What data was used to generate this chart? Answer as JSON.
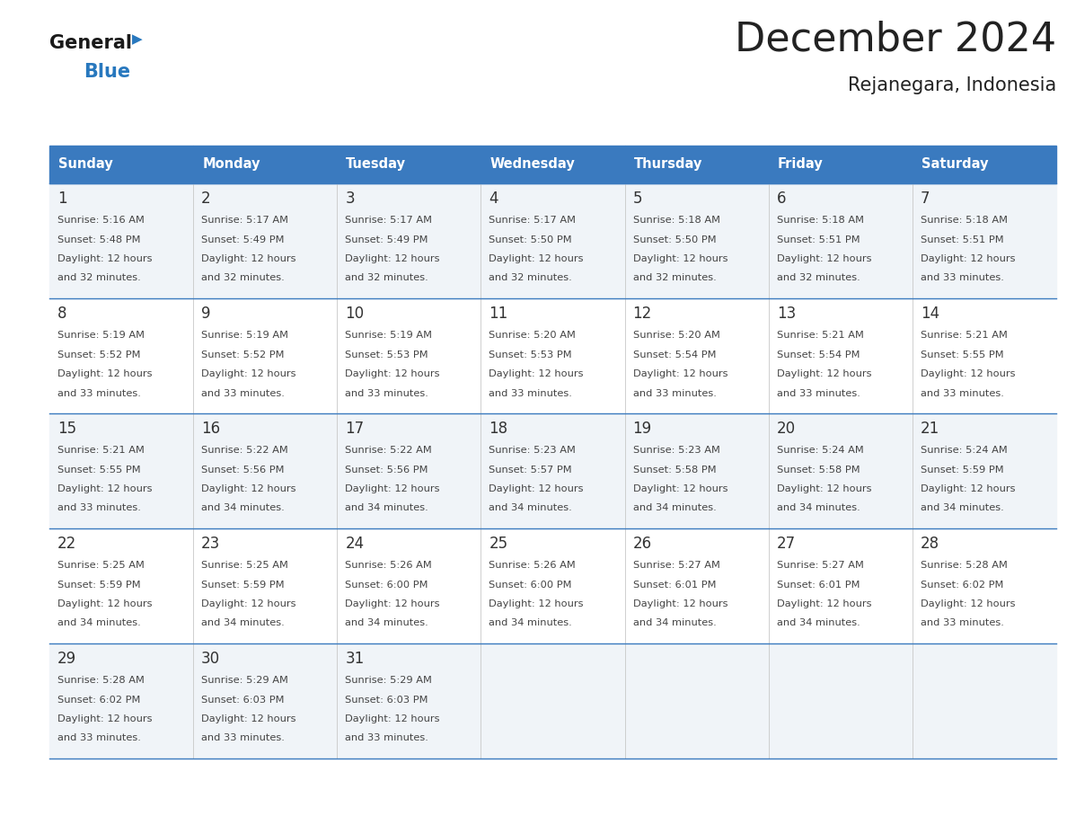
{
  "title": "December 2024",
  "subtitle": "Rejanegara, Indonesia",
  "header_bg_color": "#3a7abf",
  "header_text_color": "#ffffff",
  "day_names": [
    "Sunday",
    "Monday",
    "Tuesday",
    "Wednesday",
    "Thursday",
    "Friday",
    "Saturday"
  ],
  "row_bg_odd": "#f0f4f8",
  "row_bg_even": "#ffffff",
  "cell_border_color": "#3a7abf",
  "day_number_color": "#333333",
  "info_text_color": "#444444",
  "general_text_color": "#222222",
  "blue_text_color": "#2878be",
  "logo_general_color": "#1a1a1a",
  "weeks": [
    {
      "days": [
        {
          "date": 1,
          "sunrise": "5:16 AM",
          "sunset": "5:48 PM",
          "daylight_hours": 12,
          "daylight_minutes": 32
        },
        {
          "date": 2,
          "sunrise": "5:17 AM",
          "sunset": "5:49 PM",
          "daylight_hours": 12,
          "daylight_minutes": 32
        },
        {
          "date": 3,
          "sunrise": "5:17 AM",
          "sunset": "5:49 PM",
          "daylight_hours": 12,
          "daylight_minutes": 32
        },
        {
          "date": 4,
          "sunrise": "5:17 AM",
          "sunset": "5:50 PM",
          "daylight_hours": 12,
          "daylight_minutes": 32
        },
        {
          "date": 5,
          "sunrise": "5:18 AM",
          "sunset": "5:50 PM",
          "daylight_hours": 12,
          "daylight_minutes": 32
        },
        {
          "date": 6,
          "sunrise": "5:18 AM",
          "sunset": "5:51 PM",
          "daylight_hours": 12,
          "daylight_minutes": 32
        },
        {
          "date": 7,
          "sunrise": "5:18 AM",
          "sunset": "5:51 PM",
          "daylight_hours": 12,
          "daylight_minutes": 33
        }
      ]
    },
    {
      "days": [
        {
          "date": 8,
          "sunrise": "5:19 AM",
          "sunset": "5:52 PM",
          "daylight_hours": 12,
          "daylight_minutes": 33
        },
        {
          "date": 9,
          "sunrise": "5:19 AM",
          "sunset": "5:52 PM",
          "daylight_hours": 12,
          "daylight_minutes": 33
        },
        {
          "date": 10,
          "sunrise": "5:19 AM",
          "sunset": "5:53 PM",
          "daylight_hours": 12,
          "daylight_minutes": 33
        },
        {
          "date": 11,
          "sunrise": "5:20 AM",
          "sunset": "5:53 PM",
          "daylight_hours": 12,
          "daylight_minutes": 33
        },
        {
          "date": 12,
          "sunrise": "5:20 AM",
          "sunset": "5:54 PM",
          "daylight_hours": 12,
          "daylight_minutes": 33
        },
        {
          "date": 13,
          "sunrise": "5:21 AM",
          "sunset": "5:54 PM",
          "daylight_hours": 12,
          "daylight_minutes": 33
        },
        {
          "date": 14,
          "sunrise": "5:21 AM",
          "sunset": "5:55 PM",
          "daylight_hours": 12,
          "daylight_minutes": 33
        }
      ]
    },
    {
      "days": [
        {
          "date": 15,
          "sunrise": "5:21 AM",
          "sunset": "5:55 PM",
          "daylight_hours": 12,
          "daylight_minutes": 33
        },
        {
          "date": 16,
          "sunrise": "5:22 AM",
          "sunset": "5:56 PM",
          "daylight_hours": 12,
          "daylight_minutes": 34
        },
        {
          "date": 17,
          "sunrise": "5:22 AM",
          "sunset": "5:56 PM",
          "daylight_hours": 12,
          "daylight_minutes": 34
        },
        {
          "date": 18,
          "sunrise": "5:23 AM",
          "sunset": "5:57 PM",
          "daylight_hours": 12,
          "daylight_minutes": 34
        },
        {
          "date": 19,
          "sunrise": "5:23 AM",
          "sunset": "5:58 PM",
          "daylight_hours": 12,
          "daylight_minutes": 34
        },
        {
          "date": 20,
          "sunrise": "5:24 AM",
          "sunset": "5:58 PM",
          "daylight_hours": 12,
          "daylight_minutes": 34
        },
        {
          "date": 21,
          "sunrise": "5:24 AM",
          "sunset": "5:59 PM",
          "daylight_hours": 12,
          "daylight_minutes": 34
        }
      ]
    },
    {
      "days": [
        {
          "date": 22,
          "sunrise": "5:25 AM",
          "sunset": "5:59 PM",
          "daylight_hours": 12,
          "daylight_minutes": 34
        },
        {
          "date": 23,
          "sunrise": "5:25 AM",
          "sunset": "5:59 PM",
          "daylight_hours": 12,
          "daylight_minutes": 34
        },
        {
          "date": 24,
          "sunrise": "5:26 AM",
          "sunset": "6:00 PM",
          "daylight_hours": 12,
          "daylight_minutes": 34
        },
        {
          "date": 25,
          "sunrise": "5:26 AM",
          "sunset": "6:00 PM",
          "daylight_hours": 12,
          "daylight_minutes": 34
        },
        {
          "date": 26,
          "sunrise": "5:27 AM",
          "sunset": "6:01 PM",
          "daylight_hours": 12,
          "daylight_minutes": 34
        },
        {
          "date": 27,
          "sunrise": "5:27 AM",
          "sunset": "6:01 PM",
          "daylight_hours": 12,
          "daylight_minutes": 34
        },
        {
          "date": 28,
          "sunrise": "5:28 AM",
          "sunset": "6:02 PM",
          "daylight_hours": 12,
          "daylight_minutes": 33
        }
      ]
    },
    {
      "days": [
        {
          "date": 29,
          "sunrise": "5:28 AM",
          "sunset": "6:02 PM",
          "daylight_hours": 12,
          "daylight_minutes": 33
        },
        {
          "date": 30,
          "sunrise": "5:29 AM",
          "sunset": "6:03 PM",
          "daylight_hours": 12,
          "daylight_minutes": 33
        },
        {
          "date": 31,
          "sunrise": "5:29 AM",
          "sunset": "6:03 PM",
          "daylight_hours": 12,
          "daylight_minutes": 33
        }
      ]
    }
  ]
}
